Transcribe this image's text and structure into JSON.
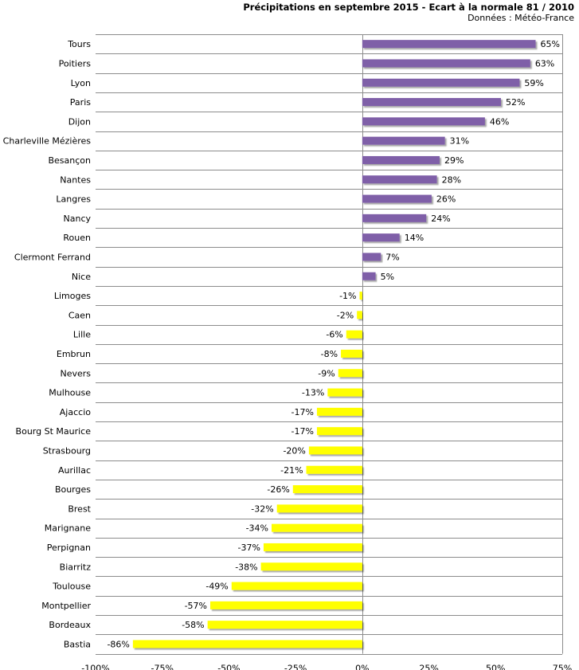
{
  "chart_data": {
    "type": "bar",
    "orientation": "horizontal",
    "title": "Précipitations en septembre 2015 - Ecart à la normale 81 / 2010",
    "subtitle": "Données : Météo-France",
    "categories": [
      "Tours",
      "Poitiers",
      "Lyon",
      "Paris",
      "Dijon",
      "Charleville Mézières",
      "Besançon",
      "Nantes",
      "Langres",
      "Nancy",
      "Rouen",
      "Clermont Ferrand",
      "Nice",
      "Limoges",
      "Caen",
      "Lille",
      "Embrun",
      "Nevers",
      "Mulhouse",
      "Ajaccio",
      "Bourg St Maurice",
      "Strasbourg",
      "Aurillac",
      "Bourges",
      "Brest",
      "Marignane",
      "Perpignan",
      "Biarritz",
      "Toulouse",
      "Montpellier",
      "Bordeaux",
      "Bastia"
    ],
    "values": [
      65,
      63,
      59,
      52,
      46,
      31,
      29,
      28,
      26,
      24,
      14,
      7,
      5,
      -1,
      -2,
      -6,
      -8,
      -9,
      -13,
      -17,
      -17,
      -20,
      -21,
      -26,
      -32,
      -34,
      -37,
      -38,
      -49,
      -57,
      -58,
      -86
    ],
    "value_labels": [
      "65%",
      "63%",
      "59%",
      "52%",
      "46%",
      "31%",
      "29%",
      "28%",
      "26%",
      "24%",
      "14%",
      "7%",
      "5%",
      "-1%",
      "-2%",
      "-6%",
      "-8%",
      "-9%",
      "-13%",
      "-17%",
      "-17%",
      "-20%",
      "-21%",
      "-26%",
      "-32%",
      "-34%",
      "-37%",
      "-38%",
      "-49%",
      "-57%",
      "-58%",
      "-86%"
    ],
    "xlim": [
      -100,
      75
    ],
    "x_ticks": [
      -100,
      -75,
      -50,
      -25,
      0,
      25,
      50,
      75
    ],
    "x_tick_labels": [
      "-100%",
      "-75%",
      "-50%",
      "-25%",
      "0%",
      "25%",
      "50%",
      "75%"
    ],
    "colors": {
      "positive": "#7f5fa8",
      "negative": "#ffff00",
      "grid": "#8c8c8c",
      "zero_line": "#8c8c8c"
    },
    "grid": "horizontal",
    "legend": "none"
  }
}
